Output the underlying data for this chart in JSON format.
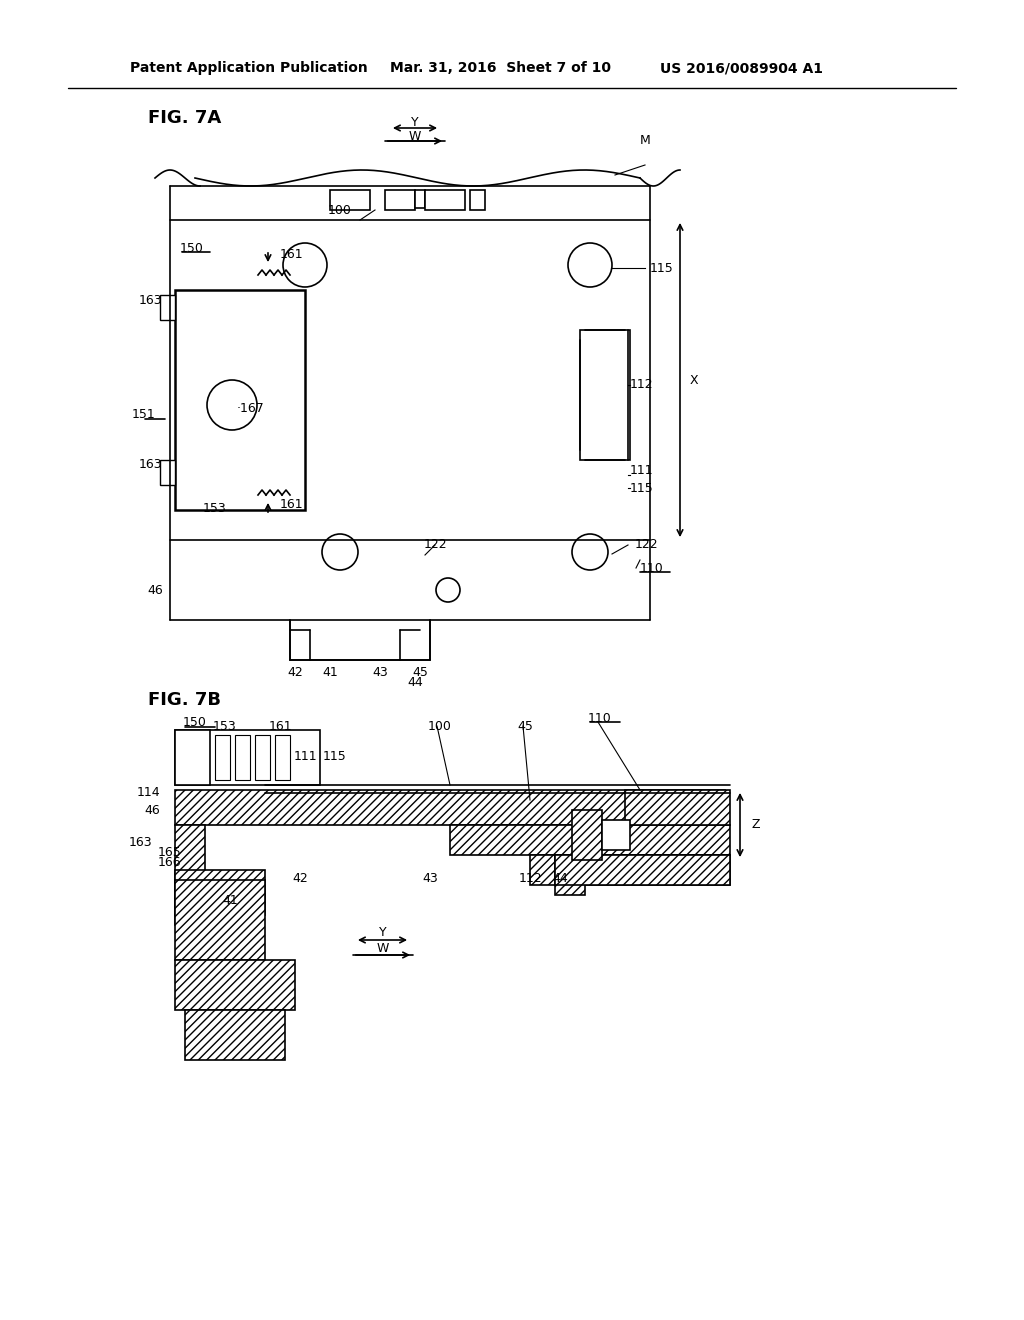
{
  "header_left": "Patent Application Publication",
  "header_mid": "Mar. 31, 2016  Sheet 7 of 10",
  "header_right": "US 2016/0089904 A1",
  "fig7a_title": "FIG. 7A",
  "fig7b_title": "FIG. 7B",
  "bg_color": "#ffffff",
  "line_color": "#000000",
  "hatch_color": "#000000",
  "label_fontsize": 9,
  "header_fontsize": 10,
  "title_fontsize": 13
}
